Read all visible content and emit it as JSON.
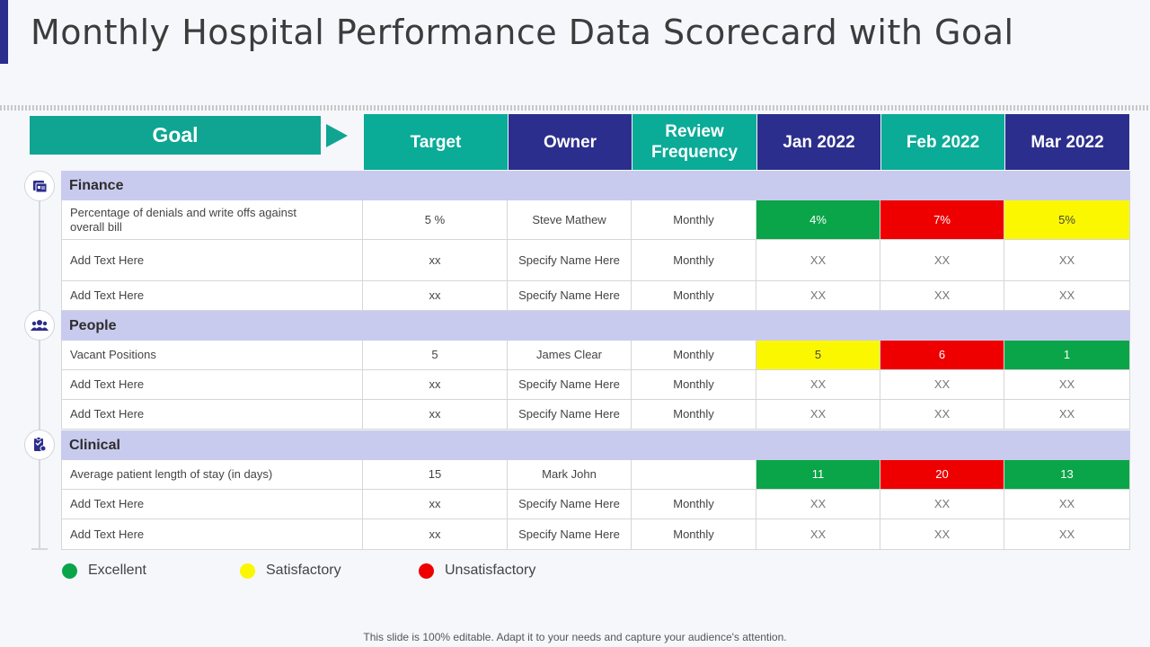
{
  "title": "Monthly Hospital Performance Data Scorecard with Goal",
  "header": {
    "goal": "Goal",
    "target": "Target",
    "owner": "Owner",
    "review_line1": "Review",
    "review_line2": "Frequency",
    "m1": "Jan 2022",
    "m2": "Feb 2022",
    "m3": "Mar 2022"
  },
  "sections": {
    "finance": "Finance",
    "people": "People",
    "clinical": "Clinical"
  },
  "rows": [
    {
      "goal": "Percentage of denials and write offs against overall  bill",
      "target": "5 %",
      "owner": "Steve Mathew",
      "review": "Monthly",
      "m1": "4%",
      "m2": "7%",
      "m3": "5%"
    },
    {
      "goal": "Add Text Here",
      "target": "xx",
      "owner": "Specify Name Here",
      "review": "Monthly",
      "m1": "XX",
      "m2": "XX",
      "m3": "XX"
    },
    {
      "goal": "Add Text Here",
      "target": "xx",
      "owner": "Specify Name Here",
      "review": "Monthly",
      "m1": "XX",
      "m2": "XX",
      "m3": "XX"
    },
    {
      "goal": "Vacant Positions",
      "target": "5",
      "owner": "James Clear",
      "review": "Monthly",
      "m1": "5",
      "m2": "6",
      "m3": "1"
    },
    {
      "goal": "Add Text Here",
      "target": "xx",
      "owner": "Specify Name Here",
      "review": "Monthly",
      "m1": "XX",
      "m2": "XX",
      "m3": "XX"
    },
    {
      "goal": "Add Text Here",
      "target": "xx",
      "owner": "Specify Name Here",
      "review": "Monthly",
      "m1": "XX",
      "m2": "XX",
      "m3": "XX"
    },
    {
      "goal": "Average  patient length of stay (in days)",
      "target": "15",
      "owner": "Mark John",
      "review": "",
      "m1": "11",
      "m2": "20",
      "m3": "13"
    },
    {
      "goal": "Add Text Here",
      "target": "xx",
      "owner": "Specify Name Here",
      "review": "Monthly",
      "m1": "XX",
      "m2": "XX",
      "m3": "XX"
    },
    {
      "goal": "Add Text Here",
      "target": "xx",
      "owner": "Specify Name Here",
      "review": "Monthly",
      "m1": "XX",
      "m2": "XX",
      "m3": "XX"
    }
  ],
  "legend": {
    "excellent": "Excellent",
    "satisfactory": "Satisfactory",
    "unsatisfactory": "Unsatisfactory"
  },
  "colors": {
    "excellent": "#0aa548",
    "satisfactory": "#fbf700",
    "unsatisfactory": "#ef0000",
    "teal": "#0aab97",
    "navy": "#2b2e8c",
    "section_bg": "#c9cbee"
  },
  "footer": "This slide is 100% editable. Adapt it to your needs and capture your audience's attention."
}
